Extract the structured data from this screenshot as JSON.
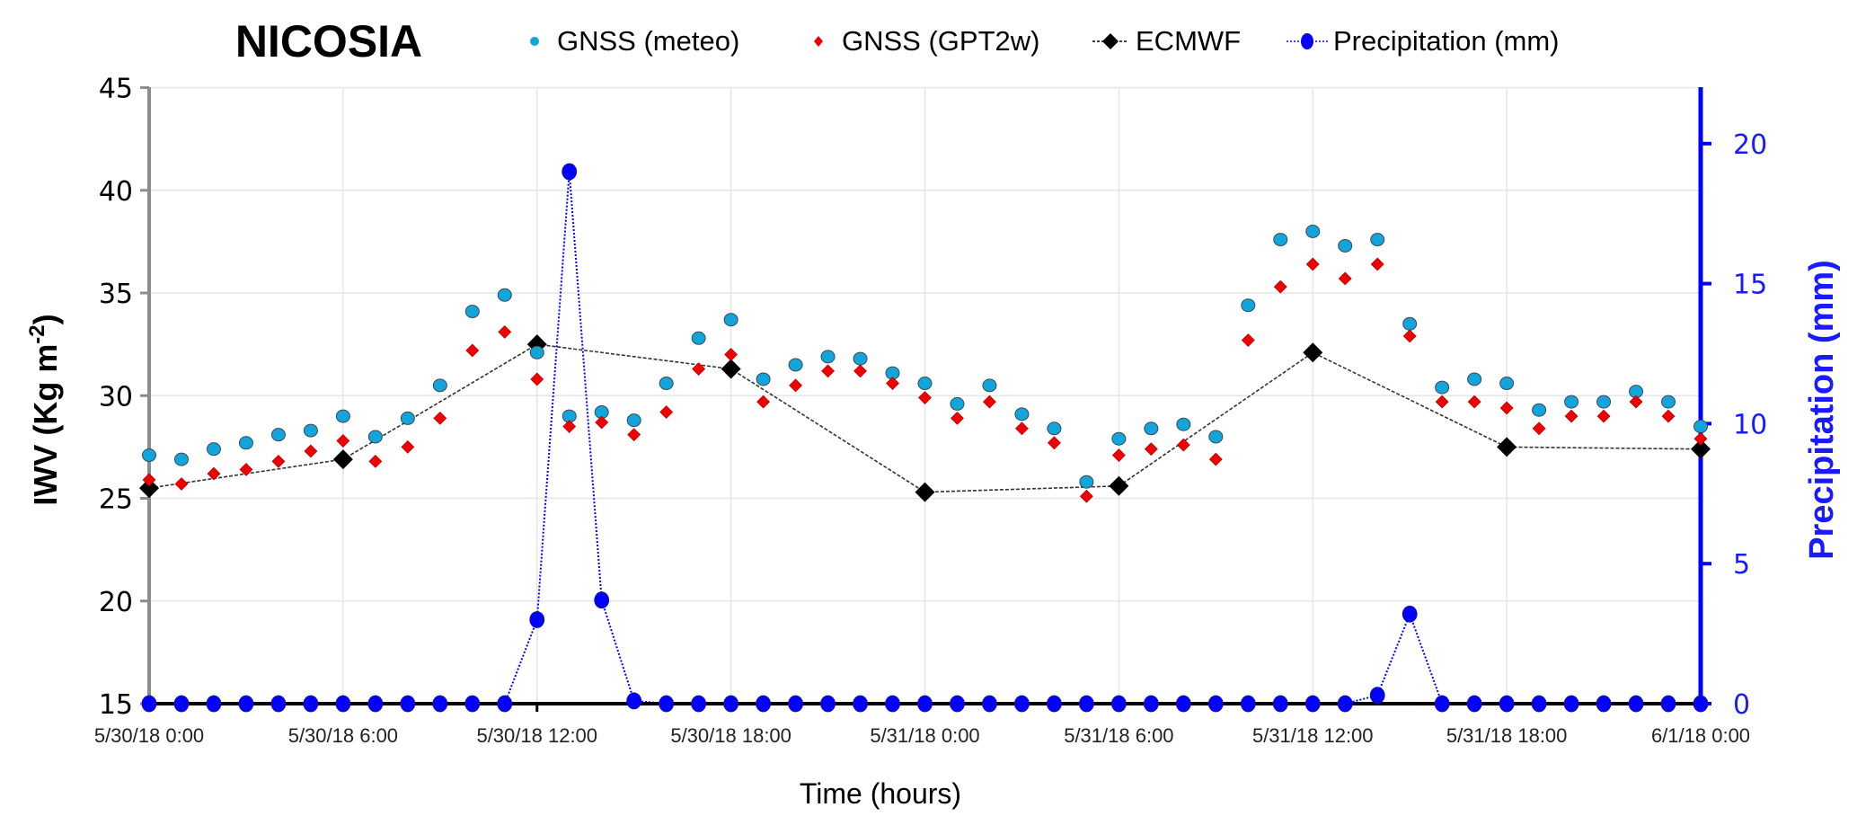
{
  "chart_data": {
    "type": "line",
    "title": "NICOSIA",
    "xlabel": "Time (hours)",
    "ylabel": "IWV (Kg  m",
    "ylabel_sup": "-2",
    "ylabel_close": ")",
    "y2label": "Precipitation (mm)",
    "ylim": [
      15,
      45
    ],
    "y2lim": [
      0,
      22
    ],
    "xlim_hours": [
      0,
      48
    ],
    "yticks": [
      "15",
      "20",
      "25",
      "30",
      "35",
      "40",
      "45"
    ],
    "y2ticks": [
      "0",
      "5",
      "10",
      "15",
      "20"
    ],
    "xtick_labels": [
      "5/30/18 0:00",
      "5/30/18 6:00",
      "5/30/18 12:00",
      "5/30/18 18:00",
      "5/31/18 0:00",
      "5/31/18 6:00",
      "5/31/18 12:00",
      "5/31/18 18:00",
      "6/1/18 0:00"
    ],
    "xtick_hours": [
      0,
      6,
      12,
      18,
      24,
      30,
      36,
      42,
      48
    ],
    "grid": true,
    "legend_position": "top",
    "series": [
      {
        "name": "GNSS (meteo)",
        "axis": "left",
        "marker": "circle",
        "line": "none",
        "color": "#12a5dc",
        "x_hours": [
          0,
          1,
          2,
          3,
          4,
          5,
          6,
          7,
          8,
          9,
          10,
          11,
          12,
          13,
          14,
          15,
          16,
          17,
          18,
          19,
          20,
          21,
          22,
          23,
          24,
          25,
          26,
          27,
          28,
          29,
          30,
          31,
          32,
          33,
          34,
          35,
          36,
          37,
          38,
          39,
          40,
          41,
          42,
          43,
          44,
          45,
          46,
          47,
          48
        ],
        "values": [
          27.1,
          26.9,
          27.4,
          27.7,
          28.1,
          28.3,
          29.0,
          28.0,
          28.9,
          30.5,
          34.1,
          34.9,
          32.1,
          29.0,
          29.2,
          28.8,
          30.6,
          32.8,
          33.7,
          30.8,
          31.5,
          31.9,
          31.8,
          31.1,
          30.6,
          29.6,
          30.5,
          29.1,
          28.4,
          25.8,
          27.9,
          28.4,
          28.6,
          28.0,
          34.4,
          37.6,
          38.0,
          37.3,
          37.6,
          33.5,
          30.4,
          30.8,
          30.6,
          29.3,
          29.7,
          29.7,
          30.2,
          29.7,
          28.5
        ]
      },
      {
        "name": "GNSS (GPT2w)",
        "axis": "left",
        "marker": "diamond",
        "line": "none",
        "color": "#ee0000",
        "x_hours": [
          0,
          1,
          2,
          3,
          4,
          5,
          6,
          7,
          8,
          9,
          10,
          11,
          12,
          13,
          14,
          15,
          16,
          17,
          18,
          19,
          20,
          21,
          22,
          23,
          24,
          25,
          26,
          27,
          28,
          29,
          30,
          31,
          32,
          33,
          34,
          35,
          36,
          37,
          38,
          39,
          40,
          41,
          42,
          43,
          44,
          45,
          46,
          47,
          48
        ],
        "values": [
          25.9,
          25.7,
          26.2,
          26.4,
          26.8,
          27.3,
          27.8,
          26.8,
          27.5,
          28.9,
          32.2,
          33.1,
          30.8,
          28.5,
          28.7,
          28.1,
          29.2,
          31.3,
          32.0,
          29.7,
          30.5,
          31.2,
          31.2,
          30.6,
          29.9,
          28.9,
          29.7,
          28.4,
          27.7,
          25.1,
          27.1,
          27.4,
          27.6,
          26.9,
          32.7,
          35.3,
          36.4,
          35.7,
          36.4,
          32.9,
          29.7,
          29.7,
          29.4,
          28.4,
          29.0,
          29.0,
          29.7,
          29.0,
          27.9
        ]
      },
      {
        "name": "ECMWF",
        "axis": "left",
        "marker": "diamond",
        "line": "dashed",
        "color": "#000000",
        "x_hours": [
          0,
          6,
          12,
          18,
          24,
          30,
          36,
          42,
          48
        ],
        "values": [
          25.5,
          26.9,
          32.5,
          31.3,
          25.3,
          25.6,
          32.1,
          27.5,
          27.4
        ]
      },
      {
        "name": "Precipitation (mm)",
        "axis": "right",
        "marker": "circle",
        "line": "dotted",
        "color": "#0000ff",
        "x_hours": [
          0,
          1,
          2,
          3,
          4,
          5,
          6,
          7,
          8,
          9,
          10,
          11,
          12,
          13,
          14,
          15,
          16,
          17,
          18,
          19,
          20,
          21,
          22,
          23,
          24,
          25,
          26,
          27,
          28,
          29,
          30,
          31,
          32,
          33,
          34,
          35,
          36,
          37,
          38,
          39,
          40,
          41,
          42,
          43,
          44,
          45,
          46,
          47,
          48
        ],
        "values": [
          0,
          0,
          0,
          0,
          0,
          0,
          0,
          0,
          0,
          0,
          0,
          0,
          3.0,
          19.0,
          3.7,
          0.1,
          0,
          0,
          0,
          0,
          0,
          0,
          0,
          0,
          0,
          0,
          0,
          0,
          0,
          0,
          0,
          0,
          0,
          0,
          0,
          0,
          0,
          0,
          0.3,
          3.2,
          0,
          0,
          0,
          0,
          0,
          0,
          0,
          0,
          0
        ]
      }
    ]
  }
}
